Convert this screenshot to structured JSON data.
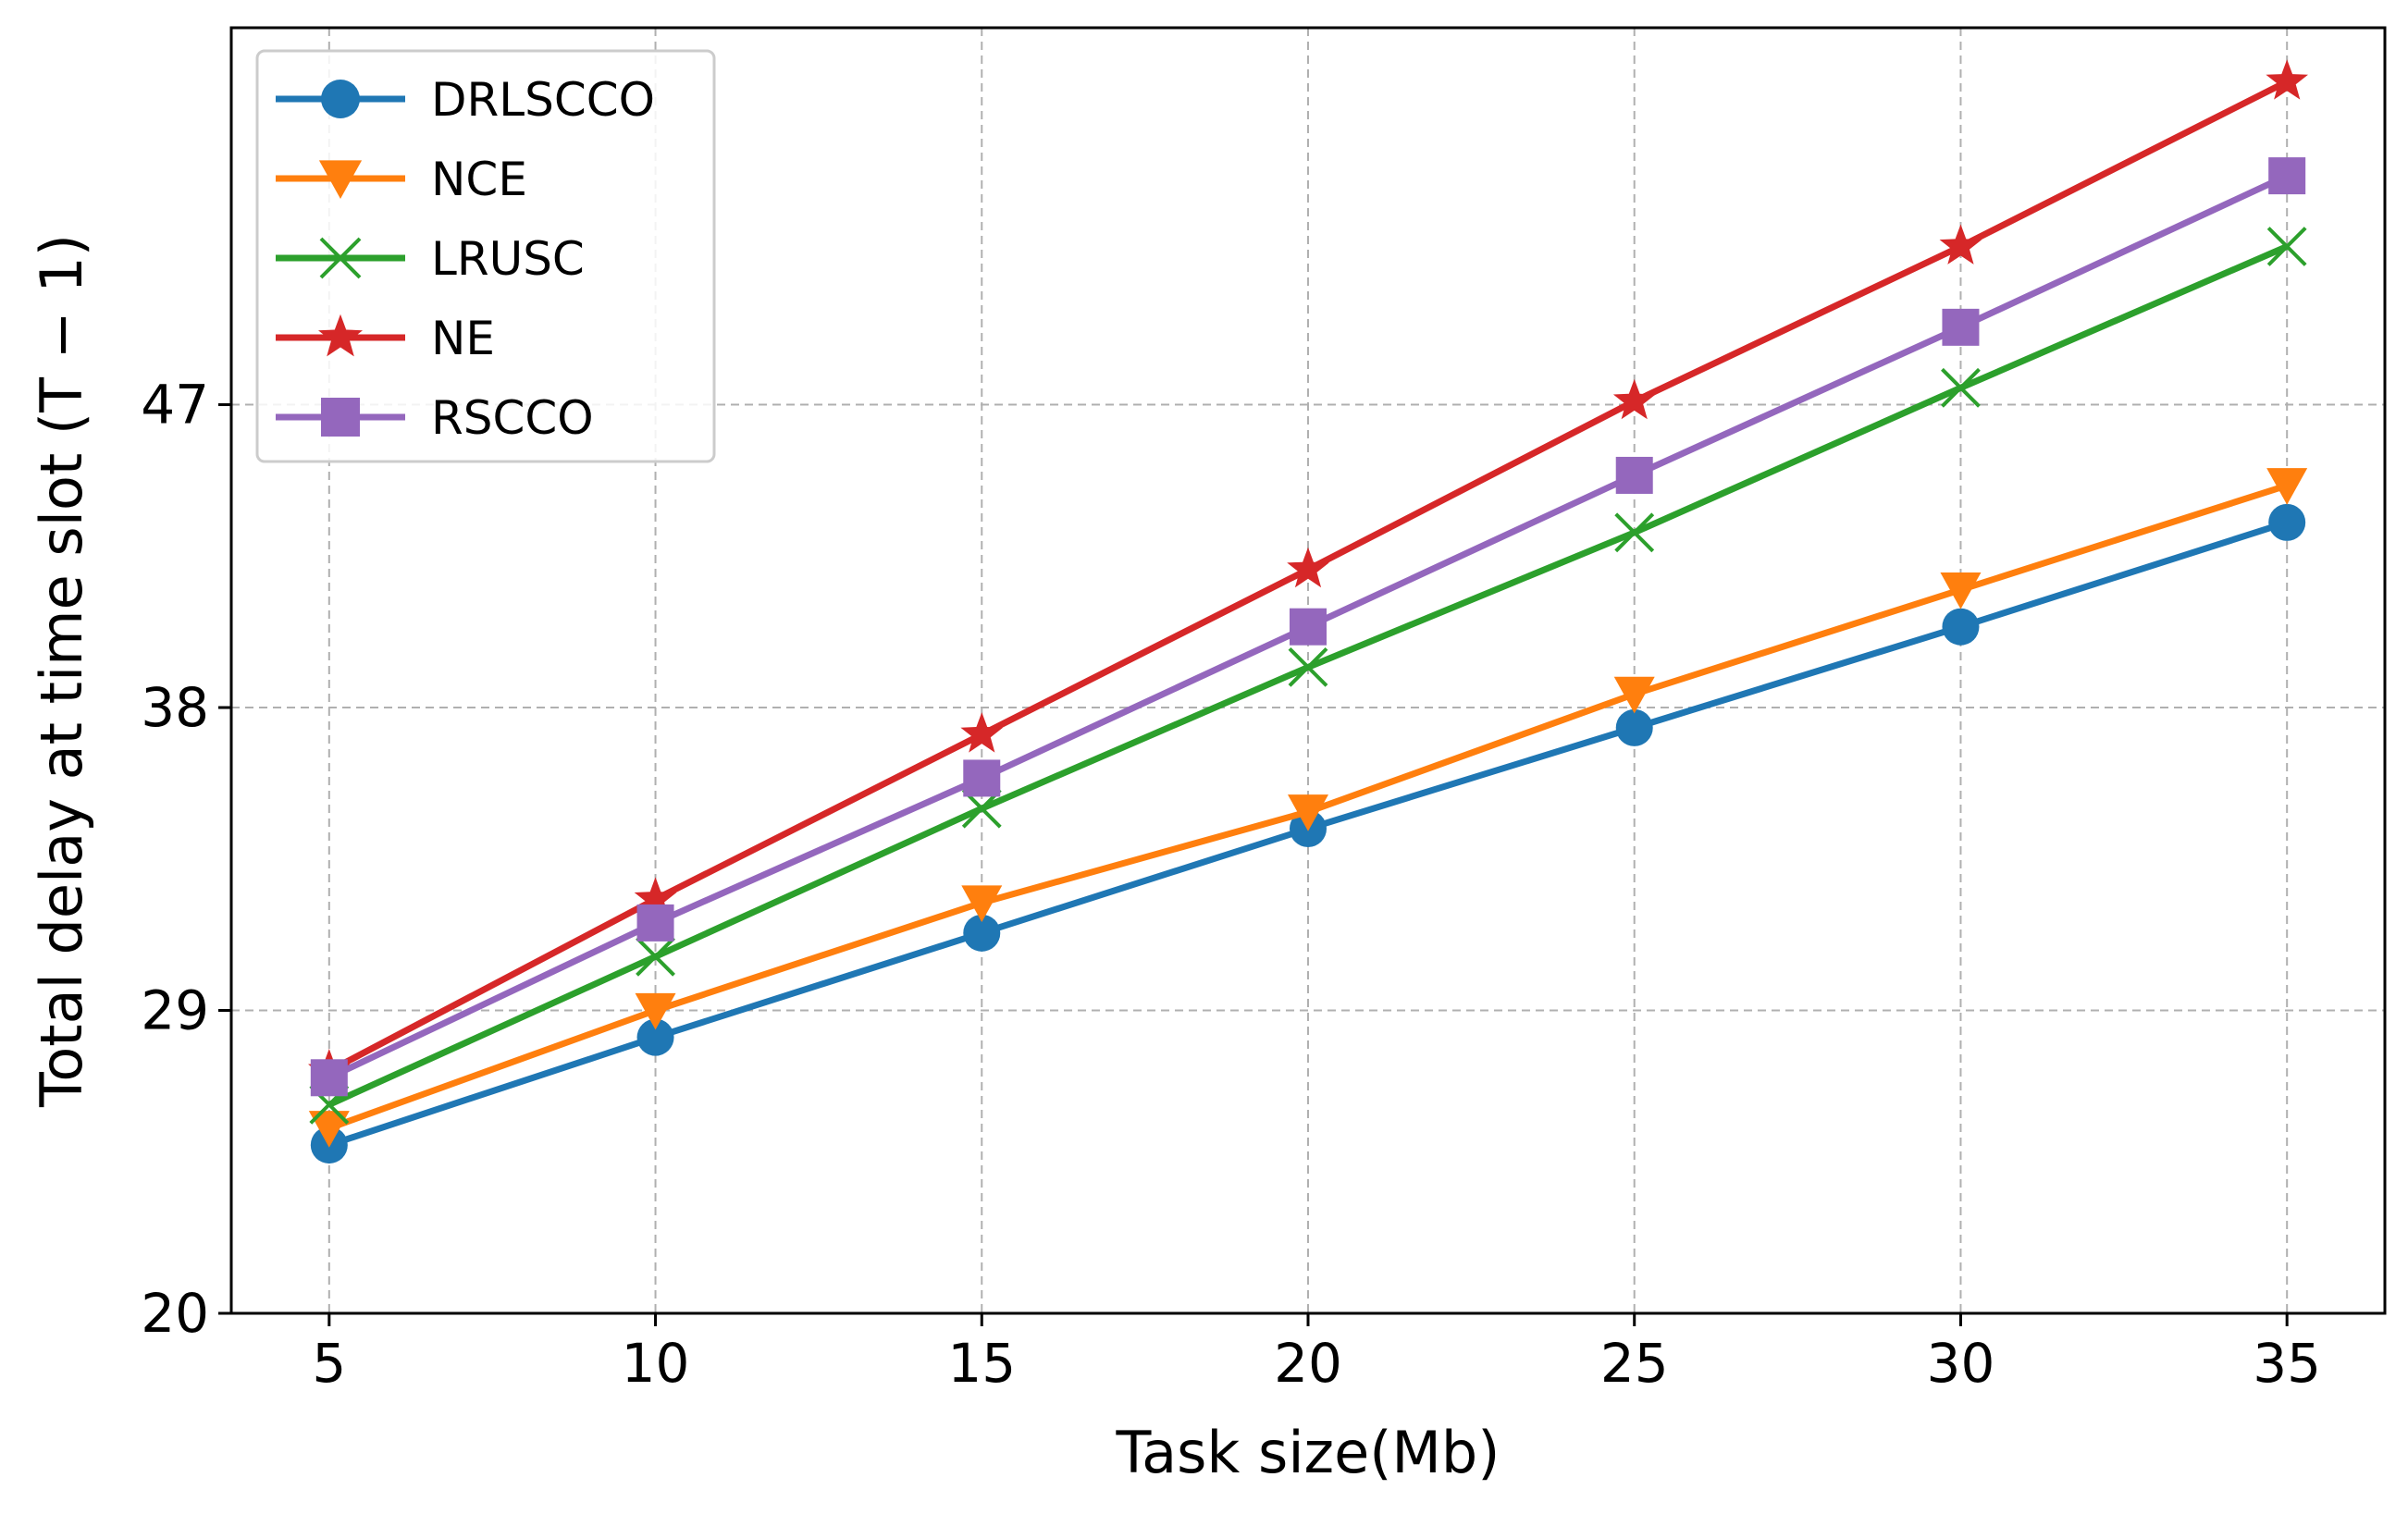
{
  "chart_data": {
    "type": "line",
    "xlabel": "Task size(Mb)",
    "ylabel": "Total delay at time slot (T − 1)",
    "x": [
      5,
      10,
      15,
      20,
      25,
      30,
      35
    ],
    "xlim": [
      3.5,
      36.5
    ],
    "ylim": [
      20,
      58.2
    ],
    "xticks": [
      5,
      10,
      15,
      20,
      25,
      30,
      35
    ],
    "yticks": [
      20,
      29,
      38,
      47
    ],
    "grid": true,
    "legend_position": "upper-left",
    "series": [
      {
        "name": "DRLSCCO",
        "color": "#1f77b4",
        "marker": "circle",
        "values": [
          25.0,
          28.2,
          31.3,
          34.4,
          37.4,
          40.4,
          43.5
        ]
      },
      {
        "name": "NCE",
        "color": "#ff7f0e",
        "marker": "triangle-down",
        "values": [
          25.5,
          29.0,
          32.2,
          34.9,
          38.4,
          41.5,
          44.6
        ]
      },
      {
        "name": "LRUSC",
        "color": "#2ca02c",
        "marker": "x",
        "values": [
          26.2,
          30.6,
          35.0,
          39.2,
          43.2,
          47.5,
          51.7
        ]
      },
      {
        "name": "NE",
        "color": "#d62728",
        "marker": "star",
        "values": [
          27.2,
          32.3,
          37.2,
          42.1,
          47.1,
          51.7,
          56.6
        ]
      },
      {
        "name": "RSCCO",
        "color": "#9467bd",
        "marker": "square",
        "values": [
          27.0,
          31.6,
          35.9,
          40.4,
          44.9,
          49.3,
          53.8
        ]
      }
    ]
  }
}
